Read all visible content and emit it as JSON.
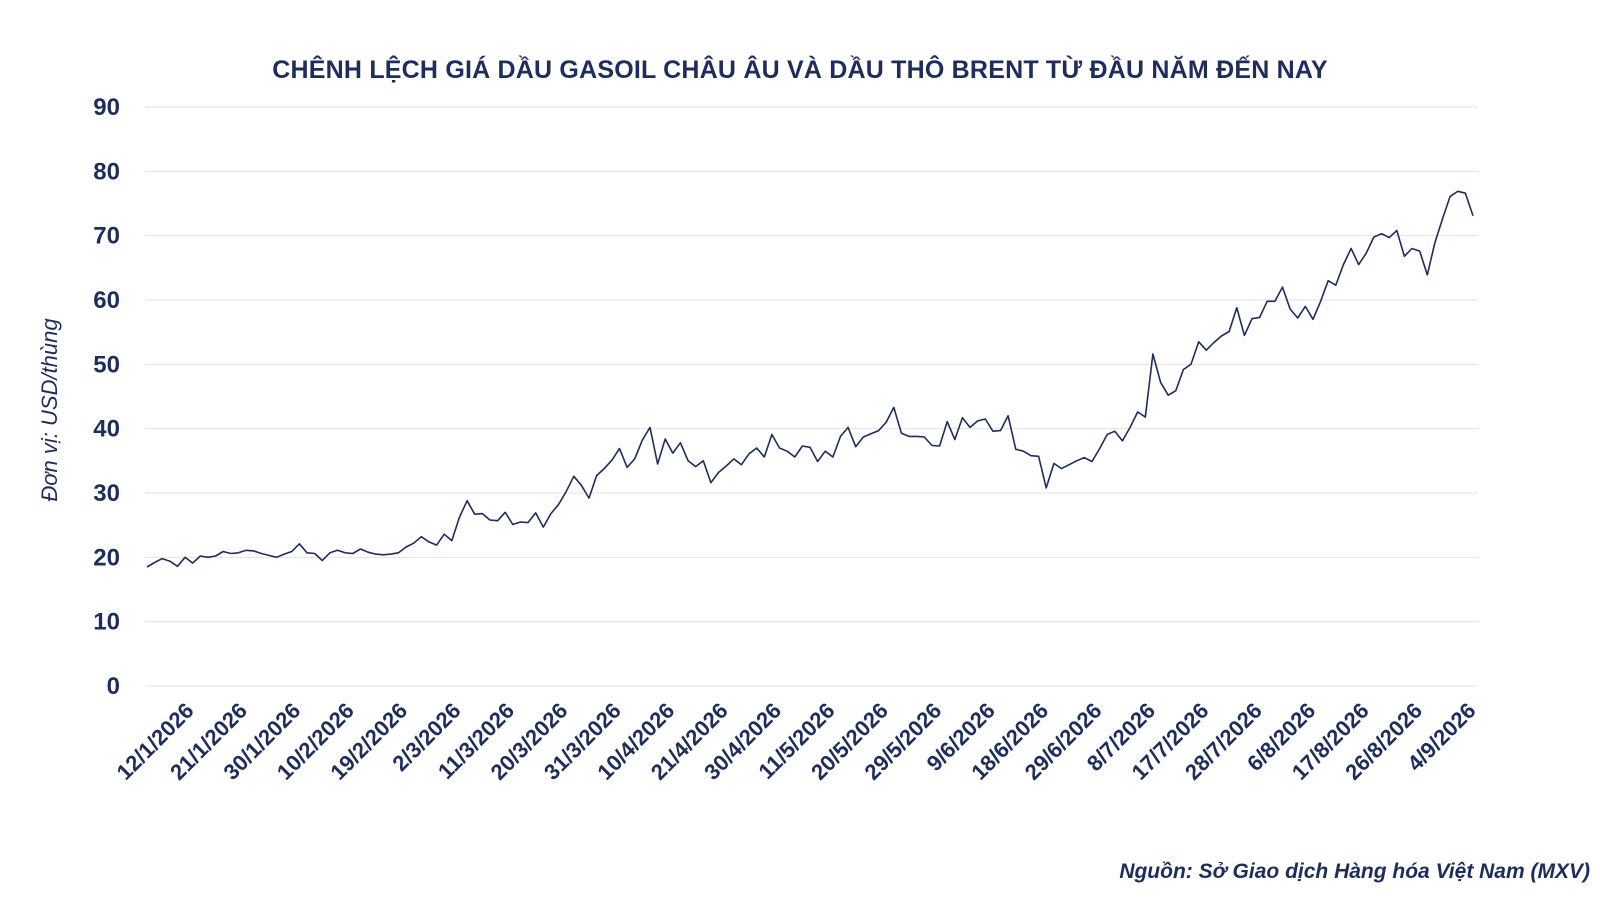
{
  "chart_data": {
    "type": "line",
    "title": "CHÊNH LỆCH GIÁ DẦU GASOIL CHÂU ÂU VÀ DẦU THÔ BRENT TỪ ĐẦU NĂM ĐẾN NAY",
    "ylabel": "Đơn vị: USD/thùng",
    "xlabel": "",
    "ylim": [
      0,
      90
    ],
    "yticks": [
      0,
      10,
      20,
      30,
      40,
      50,
      60,
      70,
      80,
      90
    ],
    "grid": true,
    "line_color": "#1f2d5c",
    "x_tick_labels": [
      "12/1/2026",
      "21/1/2026",
      "30/1/2026",
      "10/2/2026",
      "19/2/2026",
      "2/3/2026",
      "11/3/2026",
      "20/3/2026",
      "31/3/2026",
      "10/4/2026",
      "21/4/2026",
      "30/4/2026",
      "11/5/2026",
      "20/5/2026",
      "29/5/2026",
      "9/6/2026",
      "18/6/2026",
      "29/6/2026",
      "8/7/2026",
      "17/7/2026",
      "28/7/2026",
      "6/8/2026",
      "17/8/2026",
      "26/8/2026",
      "4/9/2026"
    ],
    "series": [
      {
        "values": [
          18.5,
          19.2,
          19.8,
          19.4,
          18.6,
          20.0,
          19.1,
          20.2,
          20.0,
          20.2,
          20.9,
          20.6,
          20.7,
          21.1,
          21.0,
          20.6,
          20.3,
          20.0,
          20.5,
          20.9,
          22.1,
          20.7,
          20.6,
          19.5,
          20.7,
          21.1,
          20.7,
          20.6,
          21.3,
          20.8,
          20.5,
          20.4,
          20.5,
          20.7,
          21.6,
          22.2,
          23.2,
          22.4,
          21.9,
          23.6,
          22.6,
          26.2,
          28.8,
          26.7,
          26.8,
          25.8,
          25.7,
          27.0,
          25.1,
          25.5,
          25.4,
          26.9,
          24.7,
          26.8,
          28.2,
          30.2,
          32.6,
          31.2,
          29.2,
          32.7,
          33.8,
          35.1,
          36.9,
          34.0,
          35.3,
          38.2,
          40.2,
          34.5,
          38.4,
          36.2,
          37.8,
          35.0,
          34.1,
          35.0,
          31.6,
          33.2,
          34.2,
          35.3,
          34.4,
          36.1,
          37.0,
          35.6,
          39.1,
          37.0,
          36.5,
          35.6,
          37.3,
          37.1,
          34.9,
          36.5,
          35.6,
          38.8,
          40.2,
          37.2,
          38.7,
          39.2,
          39.7,
          41.0,
          43.3,
          39.3,
          38.8,
          38.8,
          38.7,
          37.4,
          37.3,
          41.1,
          38.3,
          41.7,
          40.2,
          41.2,
          41.5,
          39.6,
          39.7,
          42.0,
          36.8,
          36.5,
          35.8,
          35.7,
          30.8,
          34.6,
          33.8,
          34.4,
          35.0,
          35.5,
          34.9,
          36.9,
          39.1,
          39.6,
          38.1,
          40.2,
          42.6,
          41.8,
          51.6,
          47.2,
          45.2,
          45.9,
          49.2,
          50.0,
          53.5,
          52.2,
          53.4,
          54.4,
          55.1,
          58.8,
          54.5,
          57.1,
          57.3,
          59.8,
          59.8,
          62.0,
          58.6,
          57.2,
          59.0,
          57.0,
          59.8,
          63.0,
          62.3,
          65.5,
          68.0,
          65.5,
          67.3,
          69.8,
          70.3,
          69.7,
          70.8,
          66.8,
          68.0,
          67.6,
          63.9,
          68.9,
          72.6,
          76.1,
          76.9,
          76.6,
          73.1
        ]
      }
    ]
  },
  "source_note": "Nguồn: Sở Giao dịch Hàng hóa Việt Nam (MXV)"
}
